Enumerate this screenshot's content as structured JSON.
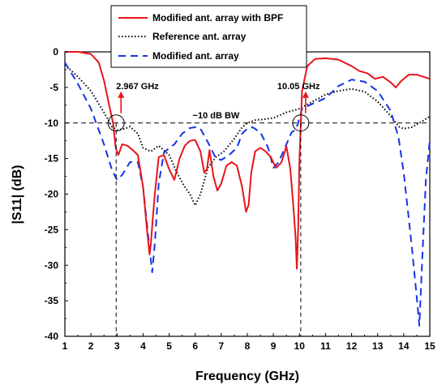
{
  "chart_data": {
    "type": "line",
    "xlabel": "Frequency (GHz)",
    "ylabel": "|S11| (dB)",
    "xlim": [
      1,
      15
    ],
    "ylim": [
      -40,
      0
    ],
    "xticks": [
      1,
      2,
      3,
      4,
      5,
      6,
      7,
      8,
      9,
      10,
      11,
      12,
      13,
      14,
      15
    ],
    "yticks": [
      0,
      -5,
      -10,
      -15,
      -20,
      -25,
      -30,
      -35,
      -40
    ],
    "grid": false,
    "legend_position": "top-center",
    "series": [
      {
        "name": "Modified ant. array with BPF",
        "style": "solid",
        "color": "#e8141b",
        "x": [
          1,
          1.5,
          2,
          2.3,
          2.5,
          2.7,
          2.85,
          2.95,
          3.05,
          3.2,
          3.4,
          3.6,
          3.8,
          4.0,
          4.15,
          4.25,
          4.3,
          4.35,
          4.45,
          4.6,
          4.8,
          5.0,
          5.2,
          5.4,
          5.6,
          5.8,
          6.0,
          6.2,
          6.35,
          6.45,
          6.55,
          6.7,
          6.85,
          7.0,
          7.2,
          7.4,
          7.6,
          7.8,
          7.95,
          8.05,
          8.15,
          8.3,
          8.5,
          8.7,
          8.9,
          9.1,
          9.3,
          9.5,
          9.65,
          9.75,
          9.85,
          9.9,
          9.95,
          10.0,
          10.1,
          10.3,
          10.6,
          11.0,
          11.5,
          12.0,
          12.3,
          12.6,
          12.9,
          13.2,
          13.5,
          13.7,
          13.9,
          14.2,
          14.5,
          15
        ],
        "values": [
          0,
          0,
          -0.3,
          -1.5,
          -4,
          -7.5,
          -10,
          -13.5,
          -14.5,
          -13,
          -13.2,
          -13.8,
          -14.5,
          -19,
          -25,
          -28.5,
          -27,
          -24.5,
          -20,
          -14.8,
          -14.5,
          -16.5,
          -18,
          -15,
          -13.2,
          -12.5,
          -12.4,
          -14,
          -17,
          -16.5,
          -13.8,
          -17.5,
          -19.5,
          -18.5,
          -16,
          -15.5,
          -16,
          -19,
          -22.5,
          -21.5,
          -17,
          -14,
          -13.5,
          -14,
          -14.8,
          -16.3,
          -15.6,
          -13.3,
          -16.5,
          -21,
          -26,
          -30.5,
          -25,
          -15,
          -5.5,
          -2,
          -1,
          -0.9,
          -1.1,
          -2,
          -2.7,
          -3,
          -3.8,
          -3.5,
          -4.3,
          -5,
          -4.1,
          -3.2,
          -3.2,
          -3.8
        ]
      },
      {
        "name": "Reference ant. array",
        "style": "dotted",
        "color": "#000000",
        "x": [
          1,
          1.5,
          2,
          2.5,
          2.8,
          3,
          3.3,
          3.5,
          3.8,
          4.0,
          4.3,
          4.6,
          5.0,
          5.3,
          5.6,
          5.8,
          6.0,
          6.2,
          6.5,
          6.8,
          7.1,
          7.5,
          7.8,
          8.0,
          8.3,
          8.6,
          9.0,
          9.5,
          10.0,
          10.5,
          11.0,
          11.5,
          12.0,
          12.5,
          13.0,
          13.5,
          13.8,
          14.0,
          14.3,
          14.6,
          15
        ],
        "values": [
          -1.8,
          -3.5,
          -5.5,
          -8.5,
          -10.5,
          -11,
          -10.8,
          -10.5,
          -11.5,
          -13.5,
          -14,
          -13.2,
          -14.5,
          -17,
          -19,
          -20,
          -21.6,
          -20,
          -16.2,
          -14.8,
          -14,
          -12.2,
          -10.6,
          -10,
          -9.6,
          -9.5,
          -9.3,
          -8.5,
          -8,
          -7,
          -6,
          -5.5,
          -5.2,
          -5.6,
          -7,
          -9,
          -10.5,
          -10.8,
          -10.6,
          -10,
          -9.1
        ]
      },
      {
        "name": "Modified ant. array",
        "style": "dashed",
        "color": "#1433e8",
        "x": [
          1,
          1.5,
          2,
          2.5,
          2.8,
          3,
          3.2,
          3.5,
          3.8,
          4.0,
          4.2,
          4.35,
          4.45,
          4.6,
          4.8,
          5.0,
          5.2,
          5.5,
          5.8,
          6.0,
          6.2,
          6.5,
          6.8,
          7.0,
          7.3,
          7.6,
          7.8,
          8.0,
          8.2,
          8.5,
          8.8,
          9.0,
          9.2,
          9.5,
          9.7,
          9.85,
          9.95,
          10.1,
          10.5,
          11.0,
          11.5,
          12.0,
          12.5,
          13.0,
          13.5,
          13.8,
          14.0,
          14.3,
          14.5,
          14.6,
          14.7,
          14.85,
          15
        ],
        "values": [
          -1.5,
          -4.5,
          -8,
          -13,
          -16.5,
          -18,
          -17.3,
          -15.5,
          -15.5,
          -19,
          -26,
          -31,
          -27,
          -18.5,
          -14.2,
          -13.5,
          -13,
          -11.5,
          -10.7,
          -10.6,
          -10.8,
          -12.8,
          -15,
          -15.2,
          -14.5,
          -13.5,
          -11.5,
          -10.8,
          -10.6,
          -11.3,
          -13.5,
          -16.3,
          -15.5,
          -13,
          -11.3,
          -11,
          -10,
          -8,
          -7.3,
          -6.5,
          -4.8,
          -3.9,
          -4.2,
          -5.5,
          -8.3,
          -12,
          -17,
          -27,
          -34.5,
          -38.5,
          -30,
          -18,
          -12.5
        ]
      }
    ],
    "reference_line": {
      "y": -10,
      "label": "−10 dB BW"
    },
    "markers": [
      {
        "x": 2.967,
        "y": -10,
        "label": "2.967 GHz"
      },
      {
        "x": 10.05,
        "y": -10,
        "label": "10.05 GHz"
      }
    ]
  }
}
